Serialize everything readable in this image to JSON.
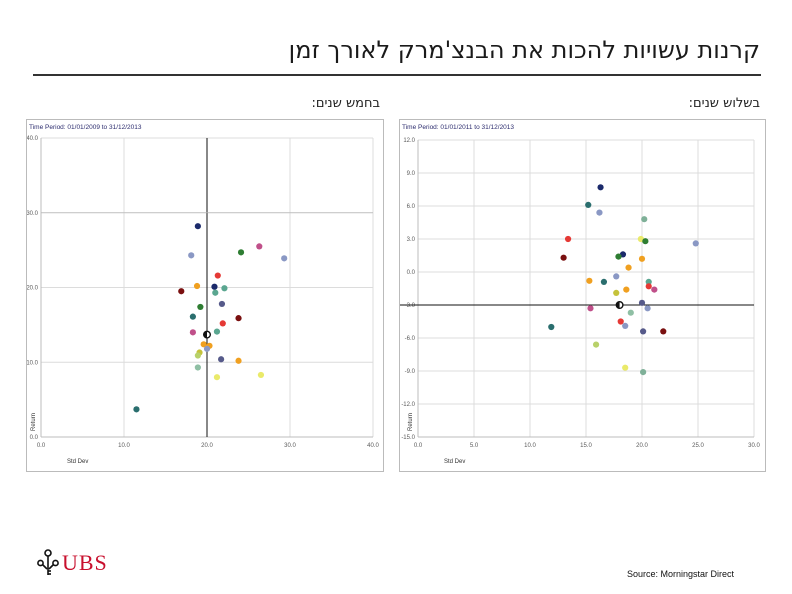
{
  "header": {
    "title": "קרנות עשויות להכות את הבנצ'מרק לאורך זמן",
    "left_subtitle": "בחמש שנים:",
    "right_subtitle": "בשלוש שנים:"
  },
  "footer": {
    "source": "Source: Morningstar Direct",
    "logo_text": "UBS"
  },
  "colors": {
    "brand_red": "#c8102e",
    "grid": "#dcdcdc",
    "axis_text": "#5a5a5a",
    "period_text": "#2c2c6e"
  },
  "chart_data": [
    {
      "type": "scatter",
      "period_text": "Time Period: 01/01/2009 to 31/12/2013",
      "xlabel": "Std Dev",
      "ylabel": "Return",
      "xlim": [
        0,
        40
      ],
      "ylim": [
        0,
        40
      ],
      "x_ticks": [
        "0.0",
        "10.0",
        "20.0",
        "30.0",
        "40.0"
      ],
      "y_ticks": [
        "0.0",
        "10.0",
        "20.0",
        "30.0",
        "40.0"
      ],
      "grid": true,
      "reference": {
        "x": 20.0,
        "y": 30.0
      },
      "benchmark": {
        "x": 20.0,
        "y": 13.7
      },
      "points": [
        {
          "x": 18.9,
          "y": 28.2,
          "color": "#1b2a6b"
        },
        {
          "x": 26.3,
          "y": 25.5,
          "color": "#c0508a"
        },
        {
          "x": 24.1,
          "y": 24.7,
          "color": "#2e7d32"
        },
        {
          "x": 18.1,
          "y": 24.3,
          "color": "#8a98c4"
        },
        {
          "x": 29.3,
          "y": 23.9,
          "color": "#8a98c4"
        },
        {
          "x": 21.3,
          "y": 21.6,
          "color": "#e53935"
        },
        {
          "x": 18.8,
          "y": 20.2,
          "color": "#f0a020"
        },
        {
          "x": 20.9,
          "y": 20.1,
          "color": "#1b2a6b"
        },
        {
          "x": 22.1,
          "y": 19.9,
          "color": "#5aa690"
        },
        {
          "x": 16.9,
          "y": 19.5,
          "color": "#7a1010"
        },
        {
          "x": 21.0,
          "y": 19.3,
          "color": "#5aa690"
        },
        {
          "x": 21.8,
          "y": 17.8,
          "color": "#565a8a"
        },
        {
          "x": 19.2,
          "y": 17.4,
          "color": "#2e7d32"
        },
        {
          "x": 18.3,
          "y": 16.1,
          "color": "#2a6e6e"
        },
        {
          "x": 23.8,
          "y": 15.9,
          "color": "#7a1010"
        },
        {
          "x": 21.9,
          "y": 15.2,
          "color": "#e53935"
        },
        {
          "x": 21.2,
          "y": 14.1,
          "color": "#5aa690"
        },
        {
          "x": 18.3,
          "y": 14.0,
          "color": "#c0508a"
        },
        {
          "x": 19.6,
          "y": 12.4,
          "color": "#f0a020"
        },
        {
          "x": 20.3,
          "y": 12.2,
          "color": "#f0a020"
        },
        {
          "x": 20.0,
          "y": 11.8,
          "color": "#8a98c4"
        },
        {
          "x": 19.1,
          "y": 11.3,
          "color": "#c5c23a"
        },
        {
          "x": 18.9,
          "y": 10.9,
          "color": "#b8d16a"
        },
        {
          "x": 21.7,
          "y": 10.4,
          "color": "#565a8a"
        },
        {
          "x": 23.8,
          "y": 10.2,
          "color": "#f0a020"
        },
        {
          "x": 18.9,
          "y": 9.3,
          "color": "#8fbfa4"
        },
        {
          "x": 26.5,
          "y": 8.3,
          "color": "#eaea6a"
        },
        {
          "x": 21.2,
          "y": 8.0,
          "color": "#eaea6a"
        },
        {
          "x": 11.5,
          "y": 3.7,
          "color": "#2a6e6e"
        }
      ]
    },
    {
      "type": "scatter",
      "period_text": "Time Period: 01/01/2011 to 31/12/2013",
      "xlabel": "Std Dev",
      "ylabel": "Return",
      "xlim": [
        0,
        30
      ],
      "ylim": [
        -15,
        12
      ],
      "x_ticks": [
        "0.0",
        "5.0",
        "10.0",
        "15.0",
        "20.0",
        "25.0",
        "30.0"
      ],
      "y_ticks": [
        "12.0",
        "9.0",
        "6.0",
        "3.0",
        "0.0",
        "-3.0",
        "-6.0",
        "-9.0",
        "-12.0",
        "-15.0"
      ],
      "grid": true,
      "reference": {
        "x": 18.0,
        "y": -3.0
      },
      "benchmark": {
        "x": 18.0,
        "y": -3.0
      },
      "points": [
        {
          "x": 16.3,
          "y": 7.7,
          "color": "#1b2a6b"
        },
        {
          "x": 15.2,
          "y": 6.1,
          "color": "#2a6e6e"
        },
        {
          "x": 16.2,
          "y": 5.4,
          "color": "#8a98c4"
        },
        {
          "x": 20.2,
          "y": 4.8,
          "color": "#7fb098"
        },
        {
          "x": 13.4,
          "y": 3.0,
          "color": "#e53935"
        },
        {
          "x": 19.9,
          "y": 3.0,
          "color": "#eaea6a"
        },
        {
          "x": 20.3,
          "y": 2.8,
          "color": "#2e7d32"
        },
        {
          "x": 24.8,
          "y": 2.6,
          "color": "#8a98c4"
        },
        {
          "x": 18.3,
          "y": 1.6,
          "color": "#1b2a6b"
        },
        {
          "x": 17.9,
          "y": 1.4,
          "color": "#2e7d32"
        },
        {
          "x": 13.0,
          "y": 1.3,
          "color": "#7a1010"
        },
        {
          "x": 20.0,
          "y": 1.2,
          "color": "#f0a020"
        },
        {
          "x": 18.8,
          "y": 0.4,
          "color": "#f0a020"
        },
        {
          "x": 17.7,
          "y": -0.4,
          "color": "#8a98c4"
        },
        {
          "x": 15.3,
          "y": -0.8,
          "color": "#f0a020"
        },
        {
          "x": 16.6,
          "y": -0.9,
          "color": "#2a6e6e"
        },
        {
          "x": 20.6,
          "y": -0.9,
          "color": "#5aa690"
        },
        {
          "x": 20.6,
          "y": -1.3,
          "color": "#e53935"
        },
        {
          "x": 18.6,
          "y": -1.6,
          "color": "#f0a020"
        },
        {
          "x": 21.1,
          "y": -1.6,
          "color": "#c0508a"
        },
        {
          "x": 17.7,
          "y": -1.9,
          "color": "#c5c23a"
        },
        {
          "x": 20.0,
          "y": -2.8,
          "color": "#565a8a"
        },
        {
          "x": 15.4,
          "y": -3.3,
          "color": "#c0508a"
        },
        {
          "x": 20.5,
          "y": -3.3,
          "color": "#8a98c4"
        },
        {
          "x": 19.0,
          "y": -3.7,
          "color": "#8fbfa4"
        },
        {
          "x": 18.1,
          "y": -4.5,
          "color": "#e53935"
        },
        {
          "x": 18.5,
          "y": -4.9,
          "color": "#8a98c4"
        },
        {
          "x": 11.9,
          "y": -5.0,
          "color": "#2a6e6e"
        },
        {
          "x": 20.1,
          "y": -5.4,
          "color": "#565a8a"
        },
        {
          "x": 21.9,
          "y": -5.4,
          "color": "#7a1010"
        },
        {
          "x": 15.9,
          "y": -6.6,
          "color": "#b8d16a"
        },
        {
          "x": 18.5,
          "y": -8.7,
          "color": "#eaea6a"
        },
        {
          "x": 20.1,
          "y": -9.1,
          "color": "#7fb098"
        }
      ]
    }
  ]
}
